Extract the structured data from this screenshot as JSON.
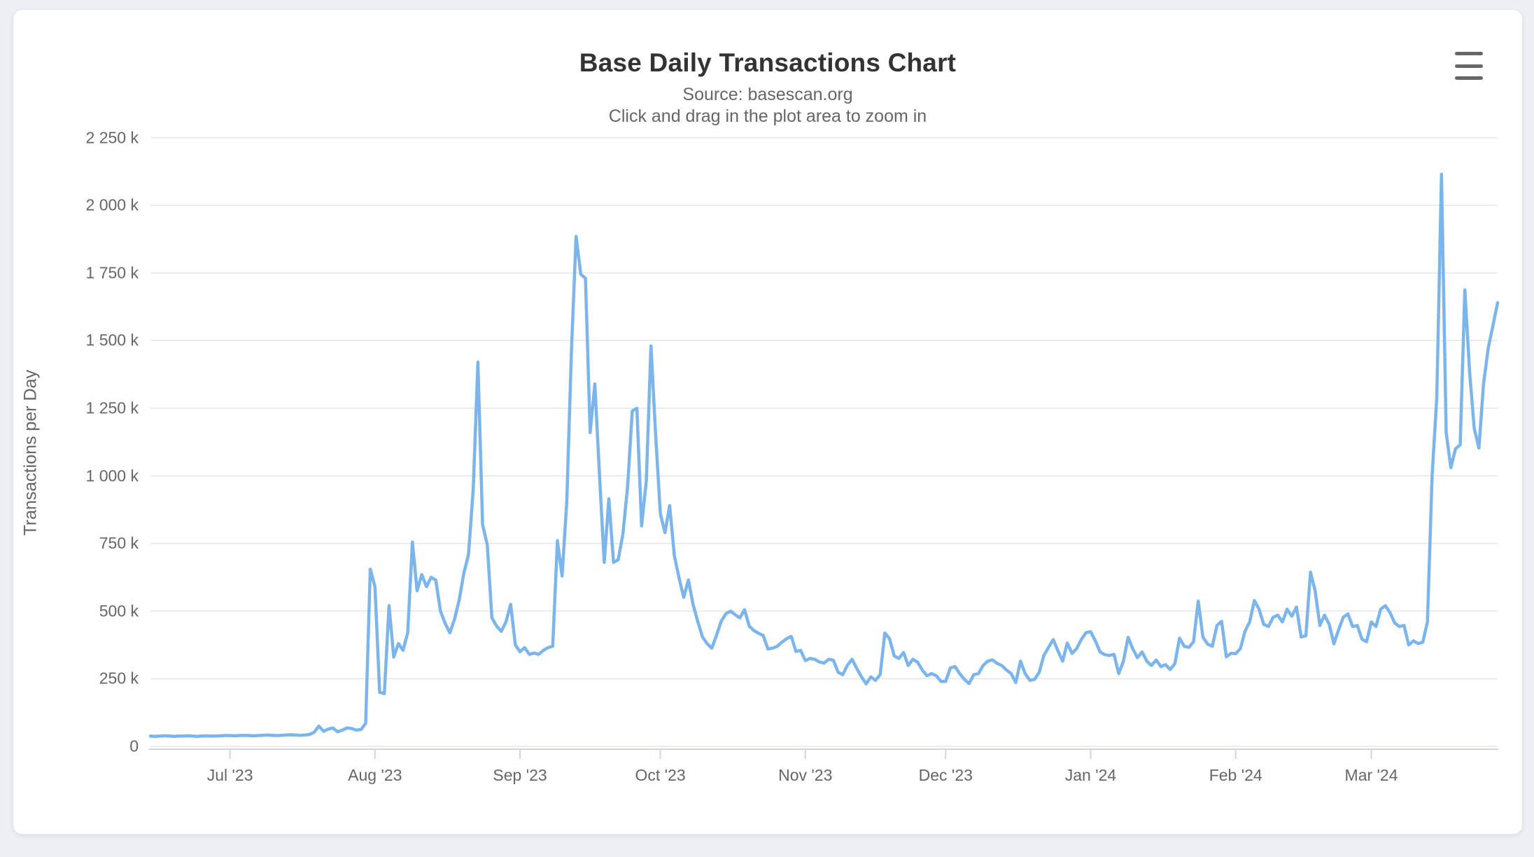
{
  "page": {
    "background_color": "#eef0f5",
    "card_color": "#ffffff"
  },
  "header": {
    "title": "Base Daily Transactions Chart",
    "subtitle_line1": "Source: basescan.org",
    "subtitle_line2": "Click and drag in the plot area to zoom in",
    "menu_icon": "hamburger-menu-icon"
  },
  "chart_data": {
    "type": "line",
    "title": "Base Daily Transactions Chart",
    "subtitle": "Source: basescan.org — Click and drag in the plot area to zoom in",
    "xlabel": "",
    "ylabel": "Transactions per Day",
    "legend": "none",
    "grid": "horizontal",
    "line_color": "#7cb5ec",
    "grid_color": "#e6e6e6",
    "axis_line_color": "#ccd6eb",
    "label_color": "#666666",
    "unit": "thousands of transactions per day",
    "start_date": "2023-06-14",
    "cadence": "daily",
    "ylim_k": [
      0,
      2250
    ],
    "y_tick_step_k": 250,
    "y_tick_labels": [
      "0",
      "250 k",
      "500 k",
      "750 k",
      "1 000 k",
      "1 250 k",
      "1 500 k",
      "1 750 k",
      "2 000 k",
      "2 250 k"
    ],
    "x_ticks": [
      {
        "label": "Jul '23",
        "day_index": 17
      },
      {
        "label": "Aug '23",
        "day_index": 48
      },
      {
        "label": "Sep '23",
        "day_index": 79
      },
      {
        "label": "Oct '23",
        "day_index": 109
      },
      {
        "label": "Nov '23",
        "day_index": 140
      },
      {
        "label": "Dec '23",
        "day_index": 170
      },
      {
        "label": "Jan '24",
        "day_index": 201
      },
      {
        "label": "Feb '24",
        "day_index": 232
      },
      {
        "label": "Mar '24",
        "day_index": 261
      }
    ],
    "values_k": [
      38,
      37,
      38,
      39,
      38,
      37,
      38,
      38,
      39,
      38,
      37,
      38,
      39,
      38,
      38,
      39,
      40,
      40,
      39,
      40,
      41,
      40,
      39,
      40,
      41,
      42,
      41,
      40,
      41,
      42,
      43,
      42,
      41,
      42,
      44,
      52,
      75,
      56,
      64,
      68,
      54,
      60,
      68,
      66,
      60,
      62,
      85,
      655,
      590,
      200,
      195,
      520,
      330,
      380,
      355,
      420,
      755,
      575,
      635,
      590,
      625,
      615,
      500,
      455,
      420,
      470,
      540,
      640,
      710,
      950,
      1420,
      820,
      745,
      475,
      445,
      425,
      460,
      525,
      375,
      350,
      365,
      340,
      345,
      340,
      355,
      365,
      370,
      760,
      630,
      905,
      1465,
      1885,
      1745,
      1730,
      1160,
      1340,
      1000,
      680,
      915,
      680,
      690,
      785,
      960,
      1240,
      1250,
      815,
      980,
      1480,
      1150,
      860,
      790,
      890,
      705,
      623,
      551,
      615,
      525,
      462,
      405,
      380,
      363,
      410,
      462,
      490,
      500,
      487,
      475,
      505,
      445,
      428,
      418,
      410,
      360,
      363,
      370,
      385,
      398,
      406,
      351,
      355,
      317,
      325,
      322,
      312,
      308,
      322,
      318,
      274,
      265,
      300,
      322,
      288,
      257,
      231,
      257,
      244,
      265,
      419,
      398,
      334,
      325,
      347,
      299,
      322,
      311,
      282,
      261,
      269,
      261,
      240,
      240,
      290,
      295,
      269,
      248,
      232,
      265,
      269,
      299,
      315,
      320,
      307,
      299,
      282,
      269,
      236,
      315,
      269,
      244,
      248,
      274,
      336,
      366,
      395,
      353,
      315,
      382,
      344,
      361,
      395,
      420,
      424,
      390,
      349,
      339,
      336,
      340,
      269,
      315,
      403,
      361,
      328,
      349,
      315,
      299,
      319,
      295,
      302,
      284,
      306,
      400,
      370,
      366,
      387,
      537,
      404,
      378,
      370,
      447,
      462,
      331,
      344,
      343,
      361,
      426,
      460,
      539,
      507,
      451,
      443,
      477,
      485,
      460,
      507,
      481,
      515,
      404,
      409,
      644,
      575,
      447,
      485,
      451,
      379,
      430,
      477,
      490,
      443,
      447,
      396,
      387,
      460,
      443,
      507,
      520,
      494,
      456,
      443,
      447,
      375,
      390,
      380,
      385,
      460,
      1000,
      1290,
      2115,
      1160,
      1030,
      1100,
      1115,
      1687,
      1387,
      1175,
      1103,
      1340,
      1472,
      1555,
      1640
    ]
  }
}
